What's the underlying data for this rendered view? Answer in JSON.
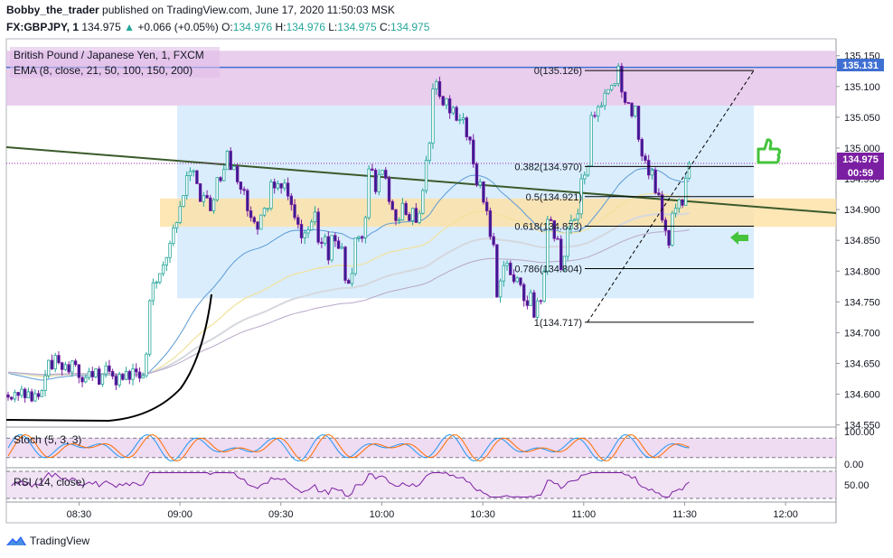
{
  "header": {
    "author": "Bobby_the_trader",
    "published": "published on TradingView.com, June 17, 2020 11:50:03 MSK",
    "symbol": "FX:GBPJPY, 1",
    "last": "134.975",
    "change": "+0.066 (+0.05%)",
    "o_label": "O:",
    "o": "134.976",
    "h_label": "H:",
    "h": "134.976",
    "l_label": "L:",
    "l": "134.975",
    "c_label": "C:",
    "c": "134.975"
  },
  "legend": {
    "title": "British Pound / Japanese Yen, 1, FXCM",
    "ema": "EMA (8, close, 21, 50, 100, 150, 200)"
  },
  "badges": {
    "resistance": "135.131",
    "price": "134.975",
    "countdown": "00:59"
  },
  "indicators": {
    "stoch": "Stoch (5, 3, 3)",
    "rsi": "RSI (14, close)"
  },
  "footer": {
    "brand": "TradingView"
  },
  "colors": {
    "up": "#26a69a",
    "down": "#7b1fa2",
    "candle_up_body": "#ffffff",
    "candle_down_body": "#311b92",
    "resistance_zone": "#e1bee7",
    "range_box": "#bbdefb",
    "support_zone": "#ffe0a3",
    "trendline": "#3a5a2a",
    "resistance_line": "#3f6fd1",
    "thumb": "#43c43b"
  },
  "chart_data": [
    {
      "type": "candlestick",
      "title": "British Pound / Japanese Yen, 1, FXCM",
      "x_ticks": [
        "08:30",
        "09:00",
        "09:30",
        "10:00",
        "10:30",
        "11:00",
        "11:30",
        "12:00"
      ],
      "x_tick_times": [
        8.5,
        9.0,
        9.5,
        10.0,
        10.5,
        11.0,
        11.5,
        12.0
      ],
      "y_ticks": [
        135.15,
        135.1,
        135.05,
        135.0,
        134.95,
        134.9,
        134.85,
        134.8,
        134.75,
        134.7,
        134.65,
        134.6,
        134.55
      ],
      "y_tick_labels": [
        "135.150",
        "135.100",
        "135.050",
        "135.000",
        "134.950",
        "134.900",
        "134.850",
        "134.800",
        "134.750",
        "134.700",
        "134.650",
        "134.600",
        "134.550"
      ],
      "ylim": [
        134.548,
        135.176
      ],
      "xlim": [
        8.14,
        12.25
      ],
      "closes": [
        134.595,
        134.592,
        134.603,
        134.598,
        134.608,
        134.594,
        134.604,
        134.589,
        134.601,
        134.596,
        134.606,
        134.63,
        134.655,
        134.641,
        134.663,
        134.651,
        134.64,
        134.648,
        134.636,
        134.654,
        134.648,
        134.627,
        134.62,
        134.627,
        134.637,
        134.628,
        134.641,
        134.616,
        134.633,
        134.646,
        134.637,
        134.629,
        134.615,
        134.632,
        134.624,
        134.637,
        134.624,
        134.641,
        134.636,
        134.626,
        134.63,
        134.665,
        134.752,
        134.781,
        134.782,
        134.796,
        134.81,
        134.822,
        134.845,
        134.87,
        134.879,
        134.905,
        134.923,
        134.955,
        134.962,
        134.963,
        134.942,
        134.913,
        134.923,
        134.919,
        134.898,
        134.916,
        134.952,
        134.947,
        134.965,
        134.995,
        134.965,
        134.97,
        134.945,
        134.933,
        134.931,
        134.898,
        134.887,
        134.88,
        134.868,
        134.891,
        134.902,
        134.902,
        134.945,
        134.935,
        134.942,
        134.935,
        134.943,
        134.922,
        134.908,
        134.887,
        134.876,
        134.854,
        134.862,
        134.867,
        134.88,
        134.896,
        134.847,
        134.845,
        134.856,
        134.818,
        134.858,
        134.849,
        134.837,
        134.839,
        134.785,
        134.78,
        134.796,
        134.854,
        134.856,
        134.854,
        134.887,
        134.966,
        134.964,
        134.929,
        134.957,
        134.964,
        134.951,
        134.913,
        134.9,
        134.882,
        134.883,
        134.91,
        134.892,
        134.882,
        134.902,
        134.879,
        134.894,
        134.931,
        134.98,
        135.008,
        135.096,
        135.108,
        135.084,
        135.07,
        135.08,
        135.057,
        135.066,
        135.045,
        135.046,
        135.049,
        135.018,
        135.013,
        134.974,
        134.94,
        134.945,
        134.912,
        134.898,
        134.856,
        134.843,
        134.758,
        134.784,
        134.809,
        134.813,
        134.794,
        134.783,
        134.789,
        134.778,
        134.752,
        134.744,
        134.765,
        134.725,
        134.752,
        134.751,
        134.8,
        134.884,
        134.882,
        134.853,
        134.852,
        134.802,
        134.824,
        134.869,
        134.882,
        134.884,
        134.893,
        134.95,
        134.956,
        134.971,
        135.053,
        135.052,
        135.067,
        135.069,
        135.089,
        135.095,
        135.102,
        135.105,
        135.133,
        135.091,
        135.074,
        135.073,
        135.052,
        135.068,
        135.014,
        134.987,
        134.98,
        134.956,
        134.964,
        134.927,
        134.924,
        134.883,
        134.866,
        134.842,
        134.894,
        134.902,
        134.916,
        134.907,
        134.951,
        134.975
      ]
    },
    {
      "type": "line",
      "series": [
        {
          "name": "Stoch (5, 3, 3)",
          "ylim": [
            0,
            100
          ],
          "y_ticks": [
            100.0,
            0.0
          ],
          "y_tick_labels": [
            "100.00",
            "0.00"
          ],
          "bands": [
            80,
            20
          ]
        },
        {
          "name": "RSI (14, close)",
          "ylim": [
            30,
            70
          ],
          "y_ticks": [
            50.0
          ],
          "y_tick_labels": [
            "50.00"
          ],
          "bands": [
            70,
            30
          ]
        }
      ]
    }
  ]
}
